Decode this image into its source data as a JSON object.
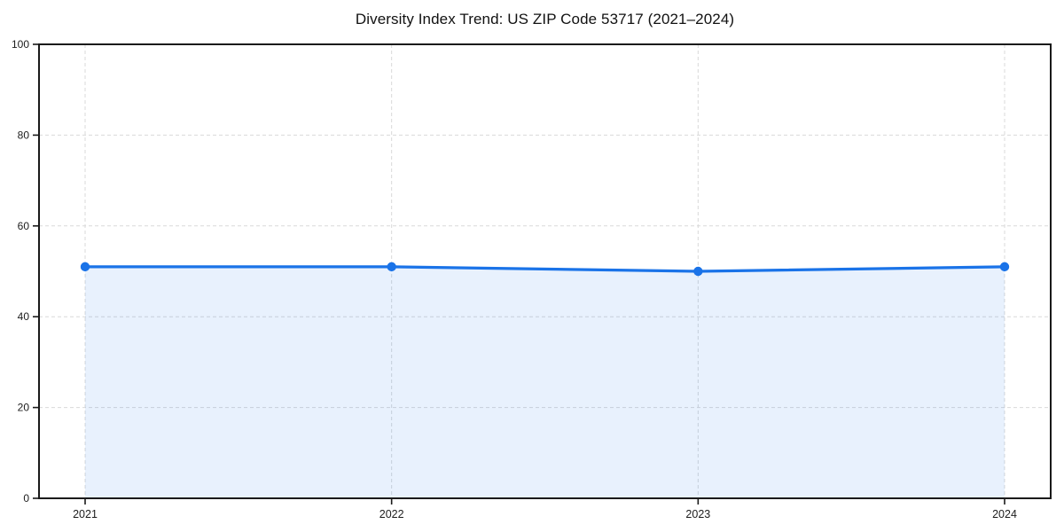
{
  "chart_data": {
    "type": "line",
    "title": "Diversity Index Trend: US ZIP Code 53717 (2021–2024)",
    "categories": [
      "2021",
      "2022",
      "2023",
      "2024"
    ],
    "series": [
      {
        "name": "Diversity Index",
        "values": [
          51,
          51,
          50,
          51
        ]
      }
    ],
    "xlabel": "",
    "ylabel": "",
    "ylim": [
      0,
      100
    ],
    "yticks": [
      0,
      20,
      40,
      60,
      80,
      100
    ],
    "grid": "dashed-both",
    "legend": "none",
    "area_fill": true,
    "marker": "circle",
    "style": {
      "line_color": "#1a73e8",
      "marker_color": "#1a73e8",
      "fill_color": "rgba(26,115,232,0.10)",
      "grid_color": "#d9d9d9",
      "spine_color": "#1a1a1a",
      "tick_color": "#1a1a1a",
      "tick_label_color": "#1c1c1c",
      "title_color": "#111111",
      "background": "#ffffff"
    }
  }
}
